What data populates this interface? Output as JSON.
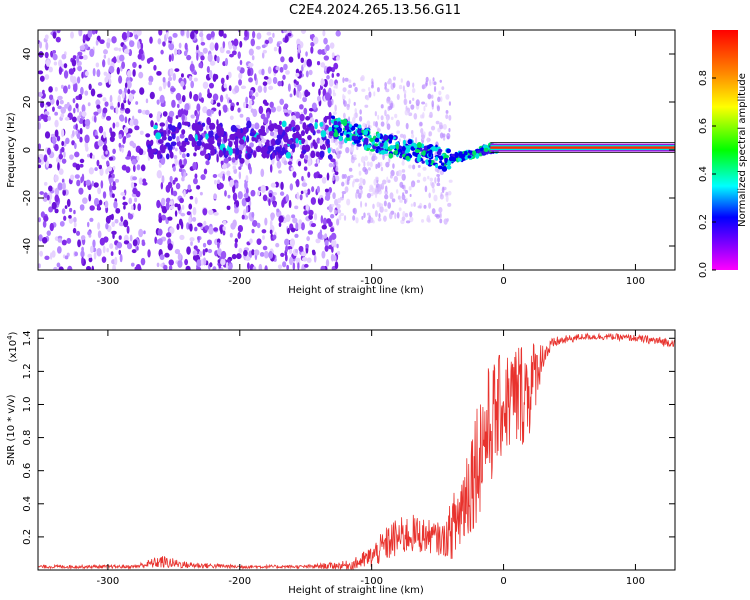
{
  "title": "C2E4.2024.265.13.56.G11",
  "colors": {
    "snr_line": "#e8322d",
    "band": "#9c0fdc",
    "frame": "#000000"
  },
  "chart_data": [
    {
      "type": "heatmap",
      "name": "spectrogram",
      "xlabel": "Height of straight line (km)",
      "ylabel": "Frequency (Hz)",
      "xlim": [
        -353,
        130
      ],
      "ylim": [
        -50,
        50
      ],
      "xticks": [
        -300,
        -200,
        -100,
        0,
        100
      ],
      "xtick_labels": [
        "-300",
        "-200",
        "-100",
        "0",
        "100"
      ],
      "yticks": [
        -40,
        -20,
        0,
        20,
        40
      ],
      "ytick_labels": [
        "-40",
        "-20",
        "0",
        "20",
        "40"
      ],
      "signal_track": {
        "description_points_height_km": [
          -130,
          -110,
          -90,
          -70,
          -55,
          -45,
          -35,
          -25,
          -15,
          -5,
          10,
          50,
          100,
          130
        ],
        "frequency_hz": [
          10,
          6,
          2,
          0,
          -2,
          -4,
          -3,
          -2,
          0,
          1,
          1,
          1,
          1,
          1
        ]
      },
      "colorbar": {
        "label": "Normalized spectral amplitude",
        "range": [
          0.0,
          1.0
        ],
        "ticks": [
          0.0,
          0.2,
          0.4,
          0.6,
          0.8
        ],
        "tick_labels": [
          "0.0",
          "0.2",
          "0.4",
          "0.6",
          "0.8"
        ],
        "colormap": "hsv-reversed (magenta-blue-cyan-green-yellow-orange-red)"
      }
    },
    {
      "type": "line",
      "name": "snr",
      "xlabel": "Height of straight line (km)",
      "ylabel": "SNR (10 * v/v)",
      "y_scale_label": "(x10",
      "y_scale_exp": "4",
      "y_scale_close": ")",
      "xlim": [
        -353,
        130
      ],
      "ylim": [
        0,
        1.45
      ],
      "xticks": [
        -300,
        -200,
        -100,
        0,
        100
      ],
      "xtick_labels": [
        "-300",
        "-200",
        "-100",
        "0",
        "100"
      ],
      "yticks": [
        0.2,
        0.4,
        0.6,
        0.8,
        1.0,
        1.2,
        1.4
      ],
      "ytick_labels": [
        "0.2",
        "0.4",
        "0.6",
        "0.8",
        "1.0",
        "1.2",
        "1.4"
      ],
      "envelope": {
        "height_km": [
          -353,
          -280,
          -260,
          -240,
          -200,
          -150,
          -115,
          -100,
          -85,
          -70,
          -55,
          -45,
          -35,
          -25,
          -15,
          -5,
          0,
          10,
          20,
          30,
          40,
          60,
          80,
          100,
          120,
          130
        ],
        "snr_mean_x1e4": [
          0.02,
          0.02,
          0.05,
          0.03,
          0.02,
          0.02,
          0.03,
          0.08,
          0.18,
          0.22,
          0.2,
          0.18,
          0.3,
          0.55,
          0.8,
          0.95,
          1.0,
          1.05,
          1.1,
          1.3,
          1.38,
          1.41,
          1.41,
          1.4,
          1.38,
          1.37
        ],
        "snr_spread_x1e4": [
          0.01,
          0.01,
          0.04,
          0.02,
          0.01,
          0.01,
          0.03,
          0.07,
          0.12,
          0.12,
          0.1,
          0.1,
          0.25,
          0.35,
          0.4,
          0.35,
          0.3,
          0.35,
          0.3,
          0.08,
          0.03,
          0.02,
          0.02,
          0.02,
          0.03,
          0.02
        ]
      }
    }
  ]
}
